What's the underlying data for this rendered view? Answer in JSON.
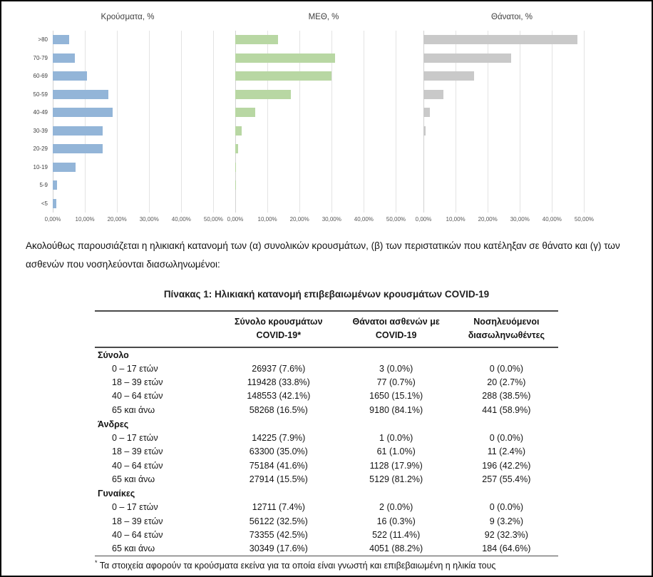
{
  "page": {
    "paragraph": "Ακολούθως παρουσιάζεται η ηλικιακή κατανομή των (α) συνολικών κρουσμάτων, (β) των περιστατικών που κατέληξαν σε θάνατο και (γ) των ασθενών που νοσηλεύονται διασωληνωμένοι:",
    "table_title": "Πίνακας 1: Ηλικιακή κατανομή επιβεβαιωμένων κρουσμάτων COVID-19"
  },
  "chart_data": [
    {
      "type": "bar",
      "orientation": "horizontal",
      "title": "Κρούσματα, %",
      "categories": [
        ">80",
        "70-79",
        "60-69",
        "50-59",
        "40-49",
        "30-39",
        "20-29",
        "10-19",
        "5-9",
        "<5"
      ],
      "values": [
        5.1,
        6.8,
        10.7,
        17.4,
        18.6,
        15.6,
        15.5,
        7.2,
        1.4,
        1.1
      ],
      "color": "#93b5d8",
      "xlim": [
        0,
        55
      ],
      "tick_values": [
        0,
        10,
        20,
        30,
        40,
        50
      ],
      "tick_labels": [
        "0,00%",
        "10,00%",
        "20,00%",
        "30,00%",
        "40,00%",
        "50,00%"
      ],
      "xlabel": "",
      "ylabel": "",
      "grid": true,
      "show_category_labels": true
    },
    {
      "type": "bar",
      "orientation": "horizontal",
      "title": "ΜΕΘ, %",
      "categories": [
        ">80",
        "70-79",
        "60-69",
        "50-59",
        "40-49",
        "30-39",
        "20-29",
        "10-19",
        "5-9",
        "<5"
      ],
      "values": [
        13.4,
        31.1,
        30.0,
        17.3,
        6.3,
        2.1,
        0.9,
        0.3,
        0.1,
        0
      ],
      "color": "#b8d7a3",
      "xlim": [
        0,
        55
      ],
      "tick_values": [
        0,
        10,
        20,
        30,
        40,
        50
      ],
      "tick_labels": [
        "0,00%",
        "10,00%",
        "20,00%",
        "30,00%",
        "40,00%",
        "50,00%"
      ],
      "xlabel": "",
      "ylabel": "",
      "grid": true,
      "show_category_labels": false
    },
    {
      "type": "bar",
      "orientation": "horizontal",
      "title": "Θάνατοι, %",
      "categories": [
        ">80",
        "70-79",
        "60-69",
        "50-59",
        "40-49",
        "30-39",
        "20-29",
        "10-19",
        "5-9",
        "<5"
      ],
      "values": [
        48.0,
        27.2,
        15.8,
        6.3,
        1.9,
        0.6,
        0,
        0,
        0,
        0
      ],
      "color": "#c9c9c9",
      "xlim": [
        0,
        55
      ],
      "tick_values": [
        0,
        10,
        20,
        30,
        40,
        50
      ],
      "tick_labels": [
        "0,00%",
        "10,00%",
        "20,00%",
        "30,00%",
        "40,00%",
        "50,00%"
      ],
      "xlabel": "",
      "ylabel": "",
      "grid": true,
      "show_category_labels": false
    }
  ],
  "table": {
    "headers": [
      "",
      "Σύνολο κρουσμάτων\nCOVID-19*",
      "Θάνατοι ασθενών με\nCOVID-19",
      "Νοσηλευόμενοι\nδιασωληνωθέντες"
    ],
    "sections": [
      {
        "label": "Σύνολο",
        "rows": [
          [
            "0 – 17 ετών",
            "26937 (7.6%)",
            "3 (0.0%)",
            "0 (0.0%)"
          ],
          [
            "18 – 39 ετών",
            "119428 (33.8%)",
            "77 (0.7%)",
            "20 (2.7%)"
          ],
          [
            "40 – 64 ετών",
            "148553 (42.1%)",
            "1650 (15.1%)",
            "288 (38.5%)"
          ],
          [
            "65 και άνω",
            "58268 (16.5%)",
            "9180 (84.1%)",
            "441 (58.9%)"
          ]
        ]
      },
      {
        "label": "Άνδρες",
        "rows": [
          [
            "0 – 17 ετών",
            "14225 (7.9%)",
            "1 (0.0%)",
            "0 (0.0%)"
          ],
          [
            "18 – 39 ετών",
            "63300 (35.0%)",
            "61 (1.0%)",
            "11 (2.4%)"
          ],
          [
            "40 – 64 ετών",
            "75184 (41.6%)",
            "1128 (17.9%)",
            "196 (42.2%)"
          ],
          [
            "65 και άνω",
            "27914 (15.5%)",
            "5129 (81.2%)",
            "257 (55.4%)"
          ]
        ]
      },
      {
        "label": "Γυναίκες",
        "rows": [
          [
            "0 – 17 ετών",
            "12711 (7.4%)",
            "2 (0.0%)",
            "0 (0.0%)"
          ],
          [
            "18 – 39 ετών",
            "56122 (32.5%)",
            "16 (0.3%)",
            "9 (3.2%)"
          ],
          [
            "40 – 64 ετών",
            "73355 (42.5%)",
            "522 (11.4%)",
            "92 (32.3%)"
          ],
          [
            "65 και άνω",
            "30349 (17.6%)",
            "4051 (88.2%)",
            "184 (64.6%)"
          ]
        ]
      }
    ],
    "footnote_marker": "*",
    "footnote": "Τα στοιχεία αφορούν τα κρούσματα εκείνα για τα οποία είναι γνωστή και επιβεβαιωμένη η ηλικία τους"
  }
}
